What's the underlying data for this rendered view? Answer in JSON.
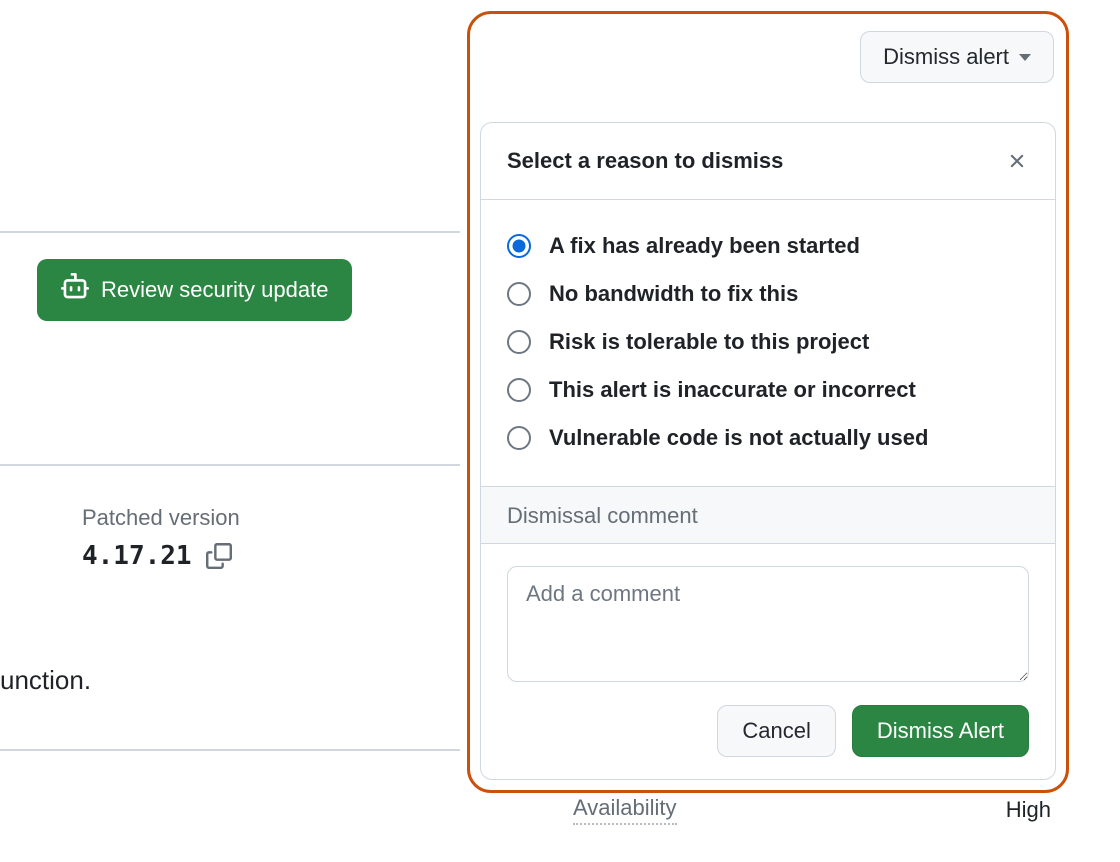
{
  "colors": {
    "primary_green": "#2c8643",
    "border": "#d0d7de",
    "highlight_border": "#c9510c",
    "text": "#1f2328",
    "text_muted": "#656d76",
    "radio_selected": "#0969da",
    "panel_bg": "#f6f8fa"
  },
  "review_button": {
    "label": "Review security update"
  },
  "patched": {
    "label": "Patched version",
    "version": "4.17.21"
  },
  "snippet_text": "unction.",
  "dismiss_button": {
    "label": "Dismiss alert"
  },
  "popover": {
    "title": "Select a reason to dismiss",
    "options": [
      {
        "label": "A fix has already been started",
        "selected": true
      },
      {
        "label": "No bandwidth to fix this",
        "selected": false
      },
      {
        "label": "Risk is tolerable to this project",
        "selected": false
      },
      {
        "label": "This alert is inaccurate or incorrect",
        "selected": false
      },
      {
        "label": "Vulnerable code is not actually used",
        "selected": false
      }
    ],
    "comment_label": "Dismissal comment",
    "comment_placeholder": "Add a comment",
    "cancel": "Cancel",
    "submit": "Dismiss Alert"
  },
  "availability": {
    "label": "Availability",
    "value": "High"
  }
}
